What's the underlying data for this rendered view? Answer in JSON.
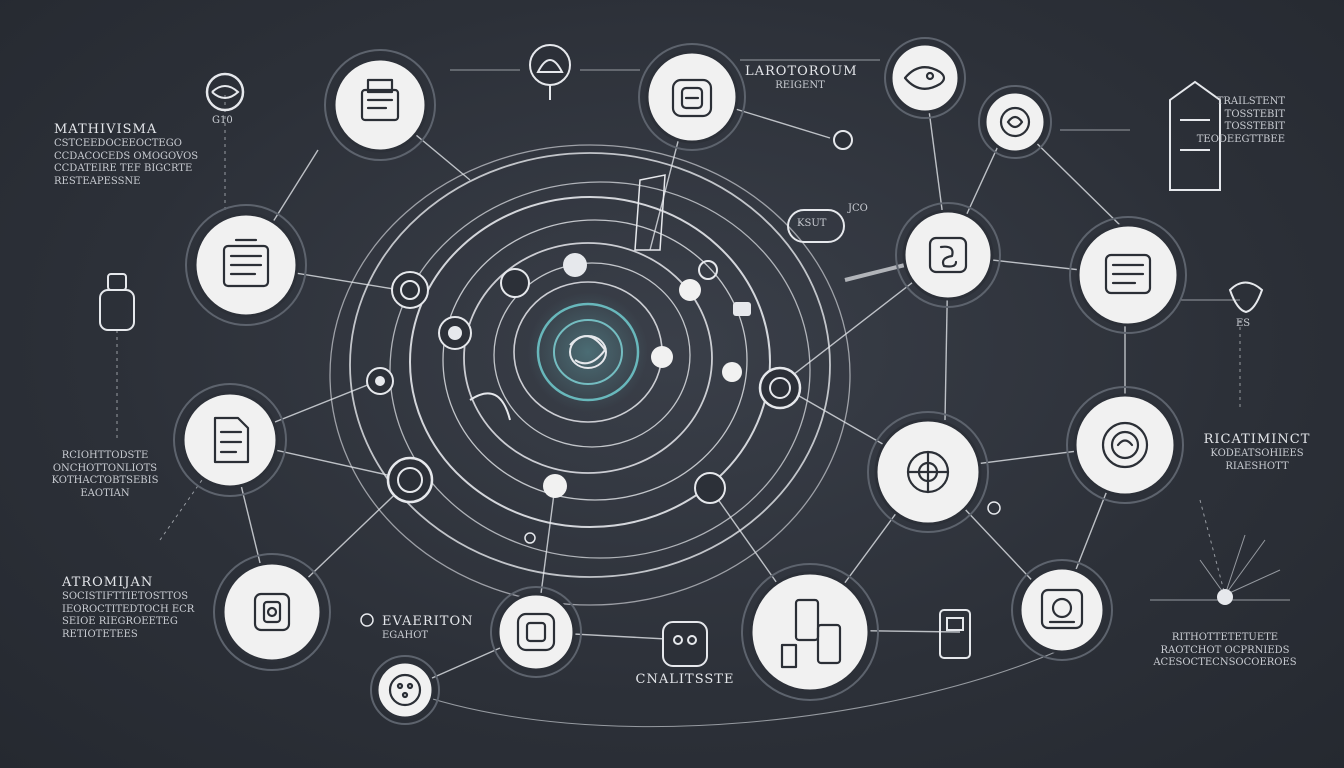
{
  "labels": {
    "top_left_heading": "MATHIVISMA",
    "top_left_lines": [
      "CSTCEEDOCEEOCTEGO",
      "CCDACOCEDS OMOGOVOS",
      "CCDATEIRE TEF BIGCRTE",
      "RESTEAPESSNE"
    ],
    "small_top_left": "G10",
    "top_center_title": "LAROTOROUM",
    "top_center_sub": "REIGENT",
    "center_right_badge": "KSUT",
    "center_right_badge_side": "JCO",
    "right_top_lines": [
      "TRAILSTENT",
      "TOSSTEBIT",
      "TOSSTEBIT",
      "TEODEEGTTBEE"
    ],
    "right_mid_small": "ES",
    "left_mid_lines": [
      "RCIOHTTODSTE",
      "ONCHOTTONLIOTS",
      "KOTHACTOBTSEBIS",
      "EAOTIAN"
    ],
    "right_mid_lines": [
      "RICATIMINCT",
      "KODEATSOHIEES",
      "RIAESHOTT"
    ],
    "bottom_left_heading": "ATROMIJAN",
    "bottom_left_lines": [
      "SOCISTIFTTIETOSTTOS",
      "IEOROCTITEDTOCH ECR",
      "SEIOE RIEGROEETEG",
      "RETIOTETEES"
    ],
    "bottom_center_title": "EVAERITON",
    "bottom_center_sub": "EGAHOT",
    "bottom_caption": "CNALITSSTE",
    "bottom_right_lines": [
      "RITHOTTETETUETE",
      "RAOTCHOT OCPRNIEDS",
      "ACESOCTECNSOCOEROES"
    ]
  },
  "nodes": [
    {
      "icon": "printer-icon"
    },
    {
      "icon": "badge-icon"
    },
    {
      "icon": "fish-icon"
    },
    {
      "icon": "lock-icon"
    },
    {
      "icon": "robot-icon"
    },
    {
      "icon": "document-icon"
    },
    {
      "icon": "contract-icon"
    },
    {
      "icon": "server-icon"
    },
    {
      "icon": "spiral-icon"
    },
    {
      "icon": "gear-icon"
    },
    {
      "icon": "lab-icon"
    },
    {
      "icon": "cpu-icon"
    },
    {
      "icon": "tablet-icon"
    },
    {
      "icon": "chip-icon"
    },
    {
      "icon": "database-icon"
    }
  ],
  "colors": {
    "background": "#2c3038",
    "node_fill": "#f1f1f1",
    "line": "#d6d9de",
    "core_accent": "#6ec4c8"
  }
}
